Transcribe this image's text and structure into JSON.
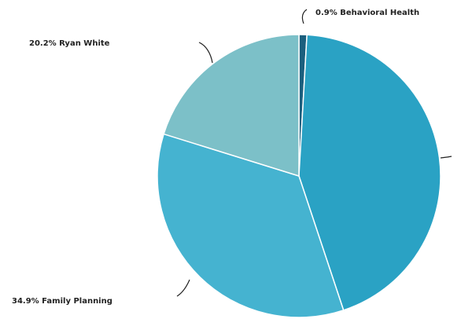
{
  "chart_data": {
    "type": "pie",
    "slices": [
      {
        "label": "Behavioral Health",
        "value": 0.9,
        "display": "0.9% Behavioral Health",
        "color": "#1b5f7e"
      },
      {
        "label": "",
        "value": 44.0,
        "display": "",
        "color": "#2aa2c4"
      },
      {
        "label": "Family Planning",
        "value": 34.9,
        "display": "34.9% Family Planning",
        "color": "#45b3d0"
      },
      {
        "label": "Ryan White",
        "value": 20.2,
        "display": "20.2% Ryan White",
        "color": "#7cc0c8"
      }
    ]
  }
}
